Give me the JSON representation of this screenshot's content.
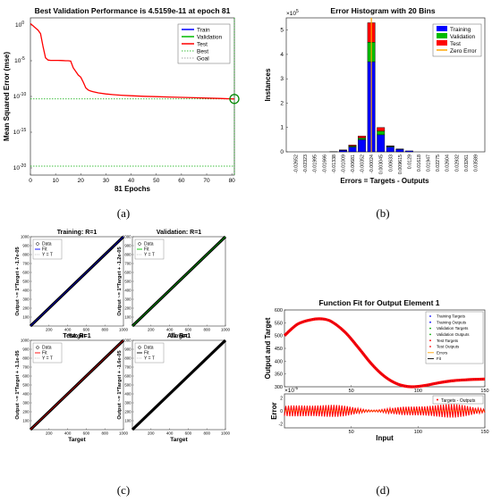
{
  "captions": [
    "(a)",
    "(b)",
    "(c)",
    "(d)"
  ],
  "colors": {
    "train": "#0000ff",
    "validation": "#00bb00",
    "test": "#ff0000",
    "best_circle": "#008800",
    "goal": "#00aa00",
    "zero_error": "#ffa500",
    "fit_black": "#000000"
  },
  "chart_data": [
    {
      "id": "a",
      "type": "line",
      "title": "Best Validation Performance is 4.5159e-11 at epoch 81",
      "xlabel": "81 Epochs",
      "ylabel": "Mean Squared Error  (mse)",
      "yscale": "log",
      "xlim": [
        0,
        81
      ],
      "ylim_exponent": [
        -21,
        1
      ],
      "xticks": [
        "0",
        "10",
        "20",
        "30",
        "40",
        "50",
        "60",
        "70",
        "80"
      ],
      "yticks": [
        {
          "base": "10",
          "exp": "0"
        },
        {
          "base": "10",
          "exp": "-5"
        },
        {
          "base": "10",
          "exp": "-10"
        },
        {
          "base": "10",
          "exp": "-15"
        },
        {
          "base": "10",
          "exp": "-20"
        }
      ],
      "legend": [
        "Train",
        "Validation",
        "Test",
        "Best",
        "Goal"
      ],
      "best": {
        "epoch": 81,
        "value": 4.5159e-11
      },
      "goal": 1e-20,
      "series": [
        {
          "name": "Test",
          "x": [
            0,
            1,
            2,
            3,
            4,
            5,
            6,
            7,
            8,
            9,
            10,
            11,
            12,
            13,
            14,
            15,
            16,
            17,
            18,
            19,
            20,
            21,
            22,
            23,
            24,
            25,
            27,
            30,
            33,
            36,
            40,
            45,
            50,
            55,
            60,
            65,
            70,
            75,
            81
          ],
          "log10": [
            0.2,
            -0.1,
            -0.4,
            -0.7,
            -1.2,
            -3.0,
            -4.6,
            -4.9,
            -4.95,
            -4.95,
            -4.95,
            -4.95,
            -4.96,
            -4.98,
            -5.0,
            -5.0,
            -5.05,
            -6.0,
            -6.5,
            -7.0,
            -7.3,
            -8.0,
            -8.8,
            -9.1,
            -9.25,
            -9.35,
            -9.5,
            -9.65,
            -9.75,
            -9.82,
            -9.9,
            -9.97,
            -10.03,
            -10.08,
            -10.13,
            -10.18,
            -10.22,
            -10.27,
            -10.35
          ]
        }
      ]
    },
    {
      "id": "b",
      "type": "bar",
      "title": "Error Histogram with 20 Bins",
      "xlabel": "Errors = Targets - Outputs",
      "ylabel": "Instances",
      "y_multiplier": "×10",
      "y_multiplier_exp": "5",
      "ylim": [
        0,
        5.5
      ],
      "yticks": [
        "0",
        "1",
        "2",
        "3",
        "4",
        "5"
      ],
      "legend": [
        "Training",
        "Validation",
        "Test",
        "Zero Error"
      ],
      "categories": [
        "-0.02652",
        "-0.02323",
        "-0.01995",
        "-0.01666",
        "-0.01338",
        "-0.01009",
        "-0.00681",
        "-0.00352",
        "-0.00024",
        "0.003045",
        "0.00633",
        "0.009615",
        "0.0129",
        "0.01618",
        "0.01947",
        "0.02275",
        "0.02604",
        "0.02932",
        "0.03261",
        "0.03589"
      ],
      "series": [
        {
          "name": "Training",
          "values": [
            0,
            0,
            0,
            0,
            0.01,
            0.06,
            0.2,
            0.5,
            3.7,
            0.7,
            0.2,
            0.1,
            0.04,
            0,
            0,
            0,
            0,
            0,
            0,
            0
          ]
        },
        {
          "name": "Validation",
          "values": [
            0,
            0,
            0,
            0,
            0,
            0.01,
            0.04,
            0.07,
            0.8,
            0.15,
            0.03,
            0.01,
            0,
            0,
            0,
            0,
            0,
            0,
            0,
            0
          ]
        },
        {
          "name": "Test",
          "values": [
            0,
            0,
            0,
            0,
            0,
            0.01,
            0.04,
            0.08,
            0.8,
            0.15,
            0.02,
            0.01,
            0,
            0,
            0,
            0,
            0,
            0,
            0,
            0
          ]
        }
      ],
      "zero_error_bin": 8
    },
    {
      "id": "c",
      "type": "scatter",
      "panels": [
        {
          "title": "Training: R=1",
          "ylabel": "Output ~= 1*Target + -1.7e-05",
          "xlabel": "Target",
          "fit_name": "Fit",
          "fit_color": "#0000ff"
        },
        {
          "title": "Validation: R=1",
          "ylabel": "Output ~= 1*Target + -1.2e-05",
          "xlabel": "Target",
          "fit_name": "Fit",
          "fit_color": "#00cc00"
        },
        {
          "title": "Test: R=1",
          "ylabel": "Output ~= 1*Target + -1.1e-05",
          "xlabel": "Target",
          "fit_name": "Fit",
          "fit_color": "#ff0000"
        },
        {
          "title": "All: R=1",
          "ylabel": "Output ~= 1*Target + -1.6e-05",
          "xlabel": "Target",
          "fit_name": "Fit",
          "fit_color": "#000000"
        }
      ],
      "legend": [
        "Data",
        "Fit",
        "Y = T"
      ],
      "xlim": [
        0,
        1000
      ],
      "ylim": [
        0,
        1000
      ],
      "xticks": [
        "200",
        "400",
        "600",
        "800",
        "1000"
      ],
      "yticks": [
        "100",
        "200",
        "300",
        "400",
        "500",
        "600",
        "700",
        "800",
        "900",
        "1000"
      ]
    },
    {
      "id": "d",
      "type": "line",
      "title": "Function Fit for Output Element 1",
      "ylabel": "Output and Target",
      "xlabel": "Input",
      "error_ylabel": "Error",
      "xlim": [
        0,
        150
      ],
      "ylim": [
        300,
        600
      ],
      "yticks": [
        "300",
        "350",
        "400",
        "450",
        "500",
        "550",
        "600"
      ],
      "xticks": [
        "50",
        "100",
        "150"
      ],
      "error_multiplier": "×10",
      "error_multiplier_exp": "-5",
      "error_yticks": [
        "2",
        "0",
        "-2"
      ],
      "legend": [
        "Training Targets",
        "Training Outputs",
        "Validation Targets",
        "Validation Outputs",
        "Test Targets",
        "Test Outputs",
        "Errors",
        "Fit"
      ],
      "error_legend": [
        "Targets - Outputs"
      ],
      "series": [
        {
          "name": "Fit",
          "x": [
            0,
            10,
            20,
            28,
            35,
            45,
            55,
            65,
            75,
            85,
            95,
            105,
            115,
            125,
            135,
            150
          ],
          "y": [
            500,
            545,
            562,
            565,
            555,
            515,
            455,
            390,
            340,
            310,
            300,
            305,
            315,
            323,
            327,
            330
          ]
        }
      ],
      "error_band": 1
    }
  ]
}
